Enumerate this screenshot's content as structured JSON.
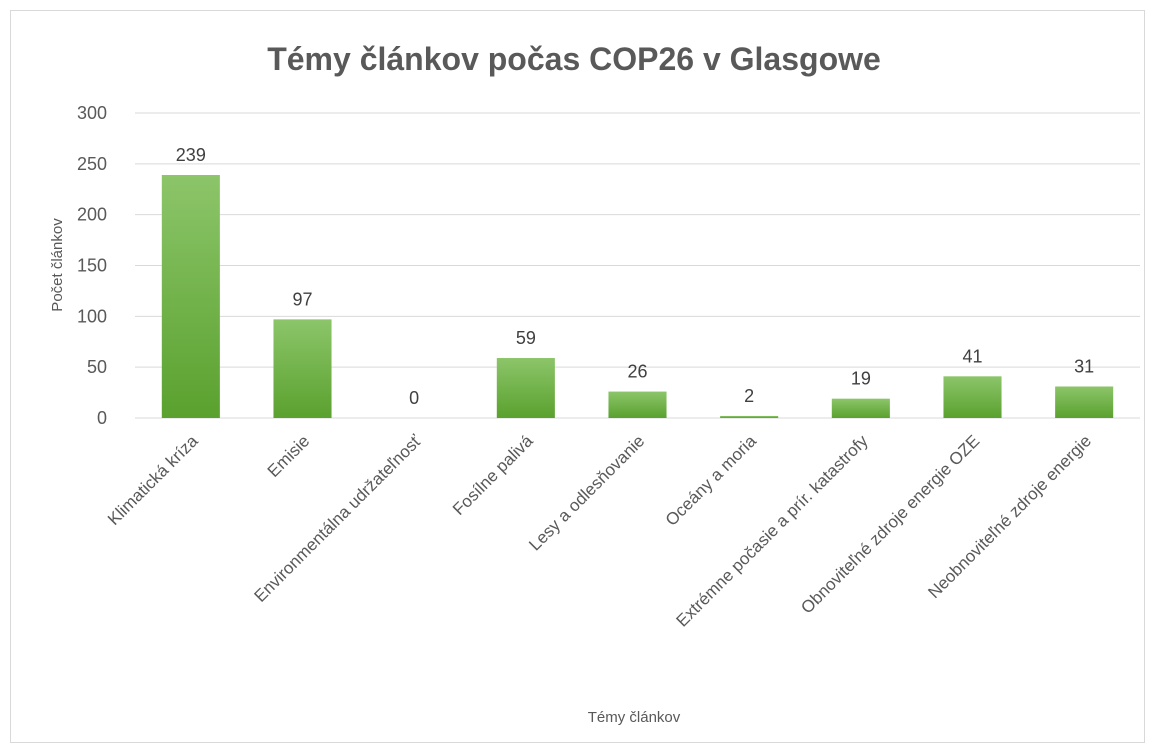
{
  "chart_data": {
    "type": "bar",
    "title": "Témy článkov počas COP26 v Glasgowe",
    "xlabel": "Témy článkov",
    "ylabel": "Počet článkov",
    "categories": [
      "Klimatická kríza",
      "Emisie",
      "Environmentálna udržateľnosť",
      "Fosílne palivá",
      "Lesy a odlesňovanie",
      "Oceány a moria",
      "Extrémne počasie a prír. katastrofy",
      "Obnoviteľné zdroje energie OZE",
      "Neobnoviteľné zdroje energie"
    ],
    "values": [
      239,
      97,
      0,
      59,
      26,
      2,
      19,
      41,
      31
    ],
    "ylim": [
      0,
      300
    ],
    "yticks": [
      0,
      50,
      100,
      150,
      200,
      250,
      300
    ],
    "grid": true,
    "legend": "none",
    "colors": {
      "bar_top": "#8cc56a",
      "bar_bottom": "#5aa12e",
      "grid": "#d9d9d9",
      "text": "#595959"
    }
  }
}
